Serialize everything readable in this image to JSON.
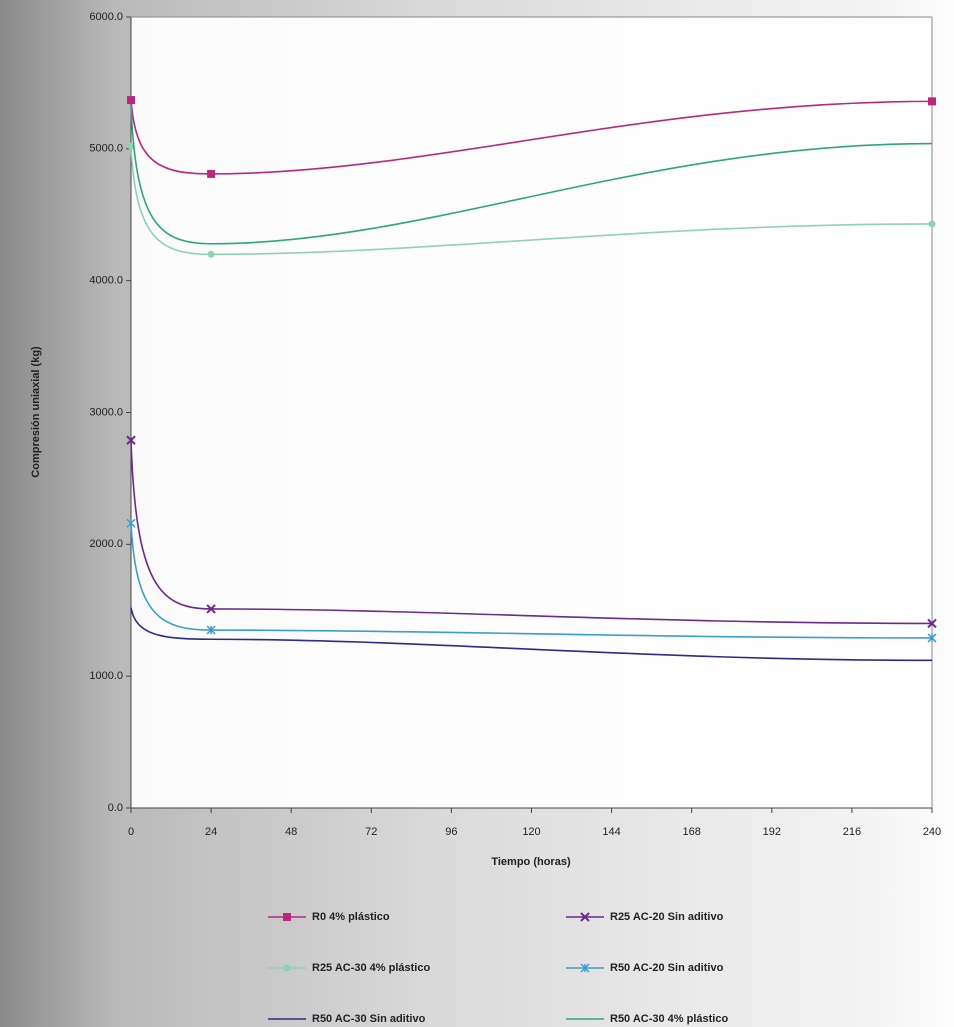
{
  "chart_data": {
    "type": "line",
    "x_label": "Tiempo (horas)",
    "y_label": "Compresión uniaxial (kg)",
    "x": [
      0,
      24,
      240
    ],
    "xlim": [
      0,
      240
    ],
    "xticks": [
      0,
      24,
      48,
      72,
      96,
      120,
      144,
      168,
      192,
      216,
      240
    ],
    "ylim": [
      0,
      6000
    ],
    "yticks": [
      {
        "value": 0,
        "label": "0.0"
      },
      {
        "value": 1000,
        "label": "1000.0"
      },
      {
        "value": 2000,
        "label": "2000.0"
      },
      {
        "value": 3000,
        "label": "3000.0"
      },
      {
        "value": 4000,
        "label": "4000.0"
      },
      {
        "value": 5000,
        "label": "5000.0"
      },
      {
        "value": 6000,
        "label": "6000.0"
      }
    ],
    "grid": false,
    "series": [
      {
        "name": "R0 4% plástico",
        "color": "#b8287f",
        "marker": "square",
        "values": [
          5370,
          4810,
          5360
        ]
      },
      {
        "name": "R25 AC-20 Sin aditivo",
        "color": "#6b2a8c",
        "marker": "x",
        "values": [
          2790,
          1510,
          1400
        ]
      },
      {
        "name": "R25 AC-30 4% plástico",
        "color": "#8fd3b2",
        "marker": "circle",
        "values": [
          5020,
          4200,
          4430
        ]
      },
      {
        "name": "R50 AC-20 Sin aditivo",
        "color": "#3a9fd0",
        "marker": "star",
        "values": [
          2160,
          1350,
          1290
        ]
      },
      {
        "name": "R50 AC-30 Sin aditivo",
        "color": "#2b2b8c",
        "marker": "none",
        "values": [
          1520,
          1280,
          1120
        ]
      },
      {
        "name": "R50 AC-30 4% plástico",
        "color": "#2aa87a",
        "marker": "none",
        "values": [
          5330,
          4280,
          5040
        ]
      }
    ]
  }
}
